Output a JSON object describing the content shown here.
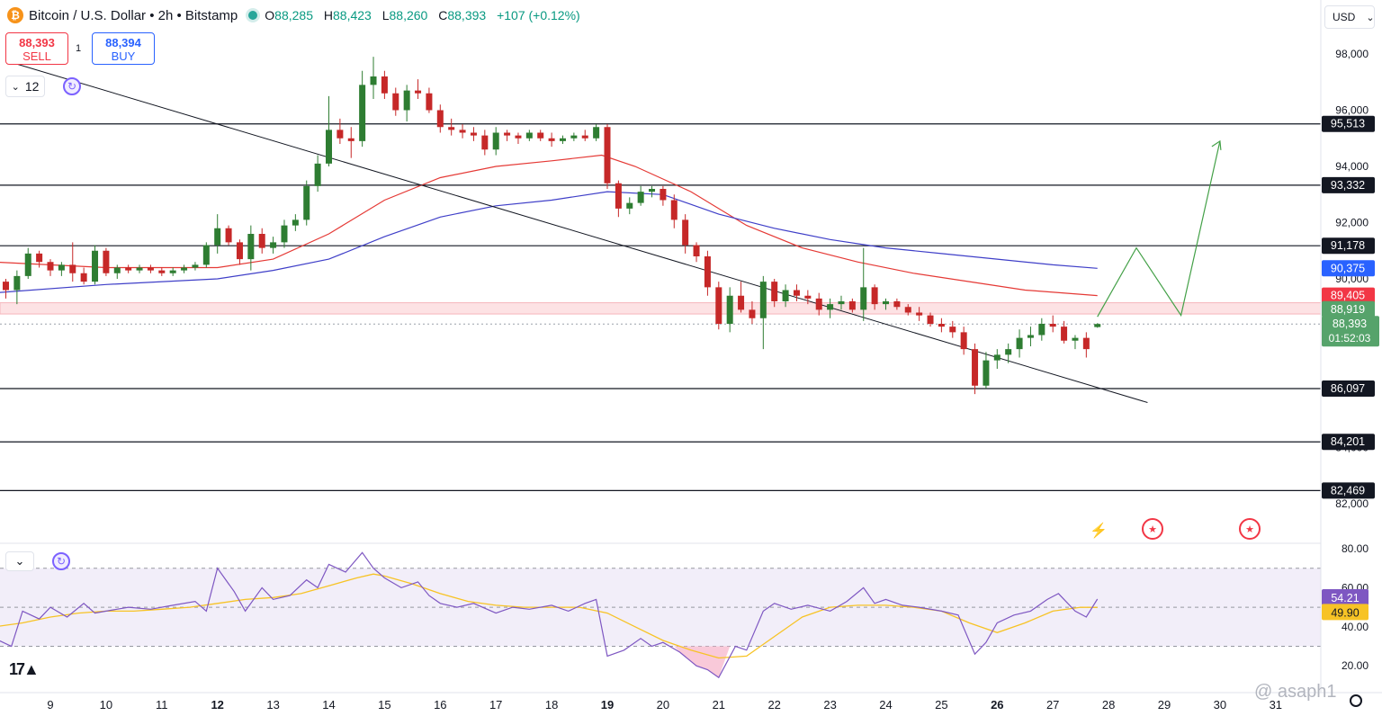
{
  "header": {
    "coin_icon": "bitcoin-icon",
    "coin_symbol": "₿",
    "title": "Bitcoin / U.S. Dollar • 2h • Bitstamp",
    "ohlc": {
      "o_label": "O",
      "o": "88,285",
      "h_label": "H",
      "h": "88,423",
      "l_label": "L",
      "l": "88,260",
      "c_label": "C",
      "c": "88,393",
      "change": "+107 (+0.12%)"
    }
  },
  "trade": {
    "sell_price": "88,393",
    "sell_label": "SELL",
    "buy_price": "88,394",
    "buy_label": "BUY",
    "spread": "1"
  },
  "indicators": {
    "count": "12",
    "rsi_chevron": "⌄"
  },
  "currency": {
    "selected": "USD",
    "chevron": "⌄"
  },
  "watermark": "@ asaph1",
  "chart_data": {
    "type": "candlestick",
    "x_ticks": [
      "9",
      "10",
      "11",
      "12",
      "13",
      "14",
      "15",
      "16",
      "17",
      "18",
      "19",
      "20",
      "21",
      "22",
      "23",
      "24",
      "25",
      "26",
      "27",
      "28",
      "29",
      "30",
      "31"
    ],
    "x_ticks_bold": [
      "12",
      "19",
      "26"
    ],
    "ylim": [
      80000,
      100000
    ],
    "y_ticks": [
      "98,000",
      "96,000",
      "94,000",
      "92,000",
      "90,000",
      "88,000",
      "86,000",
      "84,000",
      "82,000"
    ],
    "y_tick_values": [
      98000,
      96000,
      94000,
      92000,
      90000,
      88000,
      86000,
      84000,
      82000
    ],
    "horizontal_levels": [
      95513,
      93332,
      91178,
      86097,
      84201,
      82469
    ],
    "level_labels": [
      "95,513",
      "93,332",
      "91,178",
      "86,097",
      "84,201",
      "82,469"
    ],
    "zone": [
      88750,
      89150
    ],
    "price_tags": [
      {
        "label": "90,375",
        "value": 90375,
        "color": "#2962ff"
      },
      {
        "label": "89,405",
        "value": 89405,
        "color": "#f23645"
      },
      {
        "label": "88,919",
        "value": 88919,
        "color": "#56a36b"
      }
    ],
    "current_price": {
      "label": "88,393",
      "countdown": "01:52:03",
      "value": 88393,
      "color": "#56a36b"
    },
    "trendline": [
      {
        "x": 8.3,
        "y": 97700
      },
      {
        "x": 28.7,
        "y": 85600
      }
    ],
    "projection": [
      {
        "x": 27.8,
        "y": 88650
      },
      {
        "x": 28.5,
        "y": 91100
      },
      {
        "x": 29.3,
        "y": 88700
      },
      {
        "x": 30.0,
        "y": 94900
      }
    ],
    "candles": [
      [
        8.0,
        90900,
        91000,
        89600,
        89900
      ],
      [
        8.2,
        89900,
        90000,
        89300,
        89600
      ],
      [
        8.4,
        89600,
        90300,
        89100,
        90100
      ],
      [
        8.6,
        90100,
        91100,
        90000,
        90900
      ],
      [
        8.8,
        90900,
        91000,
        90400,
        90600
      ],
      [
        9.0,
        90600,
        90700,
        90100,
        90300
      ],
      [
        9.2,
        90300,
        90600,
        90100,
        90500
      ],
      [
        9.4,
        90500,
        91300,
        89900,
        90200
      ],
      [
        9.6,
        90200,
        90400,
        89800,
        89900
      ],
      [
        9.8,
        89900,
        91200,
        89800,
        91000
      ],
      [
        10.0,
        91000,
        91100,
        90100,
        90200
      ],
      [
        10.2,
        90200,
        90500,
        90000,
        90400
      ],
      [
        10.4,
        90400,
        90500,
        90200,
        90300
      ],
      [
        10.6,
        90300,
        90500,
        90200,
        90400
      ],
      [
        10.8,
        90400,
        90500,
        90200,
        90300
      ],
      [
        11.0,
        90300,
        90400,
        90100,
        90200
      ],
      [
        11.2,
        90200,
        90400,
        90100,
        90300
      ],
      [
        11.4,
        90300,
        90500,
        90200,
        90400
      ],
      [
        11.6,
        90400,
        90600,
        90300,
        90500
      ],
      [
        11.8,
        90500,
        91300,
        90400,
        91200
      ],
      [
        12.0,
        91200,
        92300,
        90900,
        91800
      ],
      [
        12.2,
        91800,
        91900,
        91200,
        91300
      ],
      [
        12.4,
        91300,
        91400,
        90500,
        90700
      ],
      [
        12.6,
        90700,
        91900,
        90300,
        91600
      ],
      [
        12.8,
        91600,
        91800,
        90900,
        91100
      ],
      [
        13.0,
        91100,
        91500,
        90900,
        91300
      ],
      [
        13.2,
        91300,
        92100,
        91100,
        91900
      ],
      [
        13.4,
        91900,
        92300,
        91700,
        92100
      ],
      [
        13.6,
        92100,
        93500,
        91900,
        93300
      ],
      [
        13.8,
        93300,
        94400,
        93100,
        94100
      ],
      [
        14.0,
        94100,
        96500,
        94000,
        95300
      ],
      [
        14.2,
        95300,
        95700,
        94800,
        95000
      ],
      [
        14.4,
        95000,
        95400,
        94300,
        94900
      ],
      [
        14.6,
        94900,
        97400,
        94700,
        96900
      ],
      [
        14.8,
        96900,
        97900,
        96400,
        97200
      ],
      [
        15.0,
        97200,
        97400,
        96400,
        96600
      ],
      [
        15.2,
        96600,
        96800,
        95800,
        96000
      ],
      [
        15.4,
        96000,
        96900,
        95600,
        96700
      ],
      [
        15.6,
        96700,
        97100,
        96400,
        96600
      ],
      [
        15.8,
        96600,
        96800,
        95900,
        96000
      ],
      [
        16.0,
        96000,
        96200,
        95200,
        95400
      ],
      [
        16.2,
        95400,
        95700,
        95100,
        95300
      ],
      [
        16.4,
        95300,
        95500,
        95000,
        95200
      ],
      [
        16.6,
        95200,
        95400,
        94900,
        95100
      ],
      [
        16.8,
        95100,
        95300,
        94400,
        94600
      ],
      [
        17.0,
        94600,
        95400,
        94400,
        95200
      ],
      [
        17.2,
        95200,
        95300,
        94900,
        95100
      ],
      [
        17.4,
        95100,
        95200,
        94800,
        95000
      ],
      [
        17.6,
        95000,
        95300,
        94900,
        95200
      ],
      [
        17.8,
        95200,
        95300,
        94900,
        95000
      ],
      [
        18.0,
        95000,
        95200,
        94700,
        94900
      ],
      [
        18.2,
        94900,
        95100,
        94800,
        95000
      ],
      [
        18.4,
        95000,
        95200,
        94900,
        95100
      ],
      [
        18.6,
        95100,
        95300,
        94900,
        95000
      ],
      [
        18.8,
        95000,
        95500,
        94900,
        95400
      ],
      [
        19.0,
        95400,
        95500,
        93200,
        93400
      ],
      [
        19.2,
        93400,
        93500,
        92200,
        92500
      ],
      [
        19.4,
        92500,
        92900,
        92300,
        92700
      ],
      [
        19.6,
        92700,
        93300,
        92600,
        93100
      ],
      [
        19.8,
        93100,
        93300,
        92900,
        93200
      ],
      [
        20.0,
        93200,
        93300,
        92600,
        92800
      ],
      [
        20.2,
        92800,
        93000,
        91800,
        92100
      ],
      [
        20.4,
        92100,
        92300,
        90900,
        91200
      ],
      [
        20.6,
        91200,
        91300,
        90600,
        90800
      ],
      [
        20.8,
        90800,
        91000,
        89400,
        89700
      ],
      [
        21.0,
        89700,
        89900,
        88200,
        88400
      ],
      [
        21.2,
        88400,
        89700,
        88100,
        89400
      ],
      [
        21.4,
        89400,
        89900,
        88800,
        88900
      ],
      [
        21.6,
        88900,
        89200,
        88400,
        88600
      ],
      [
        21.8,
        88600,
        90100,
        87500,
        89900
      ],
      [
        22.0,
        89900,
        90000,
        89000,
        89200
      ],
      [
        22.2,
        89200,
        89800,
        89000,
        89600
      ],
      [
        22.4,
        89600,
        89800,
        89200,
        89400
      ],
      [
        22.6,
        89400,
        89600,
        89100,
        89300
      ],
      [
        22.8,
        89300,
        89500,
        88700,
        88900
      ],
      [
        23.0,
        88900,
        89300,
        88600,
        89100
      ],
      [
        23.2,
        89100,
        89400,
        88900,
        89200
      ],
      [
        23.4,
        89200,
        89300,
        88800,
        88900
      ],
      [
        23.6,
        88900,
        91100,
        88500,
        89700
      ],
      [
        23.8,
        89700,
        89800,
        88900,
        89100
      ],
      [
        24.0,
        89100,
        89300,
        88900,
        89200
      ],
      [
        24.2,
        89200,
        89300,
        88900,
        89000
      ],
      [
        24.4,
        89000,
        89100,
        88700,
        88800
      ],
      [
        24.6,
        88800,
        89000,
        88500,
        88700
      ],
      [
        24.8,
        88700,
        88800,
        88300,
        88400
      ],
      [
        25.0,
        88400,
        88600,
        88100,
        88300
      ],
      [
        25.2,
        88300,
        88500,
        87900,
        88100
      ],
      [
        25.4,
        88100,
        88300,
        87300,
        87500
      ],
      [
        25.6,
        87500,
        87700,
        85900,
        86200
      ],
      [
        25.8,
        86200,
        87400,
        86100,
        87100
      ],
      [
        26.0,
        87100,
        87500,
        86800,
        87300
      ],
      [
        26.2,
        87300,
        87700,
        87000,
        87500
      ],
      [
        26.4,
        87500,
        88200,
        87200,
        87900
      ],
      [
        26.6,
        87900,
        88300,
        87600,
        88000
      ],
      [
        26.8,
        88000,
        88600,
        87800,
        88400
      ],
      [
        27.0,
        88400,
        88700,
        88100,
        88300
      ],
      [
        27.2,
        88300,
        88500,
        87700,
        87800
      ],
      [
        27.4,
        87800,
        88000,
        87500,
        87900
      ],
      [
        27.6,
        87900,
        88100,
        87200,
        87500
      ],
      [
        27.8,
        88285,
        88423,
        88260,
        88393
      ]
    ],
    "ma_red": [
      [
        8,
        90600
      ],
      [
        10,
        90400
      ],
      [
        12,
        90400
      ],
      [
        13,
        90700
      ],
      [
        14,
        91600
      ],
      [
        15,
        92800
      ],
      [
        16,
        93600
      ],
      [
        17,
        94000
      ],
      [
        18,
        94200
      ],
      [
        18.9,
        94400
      ],
      [
        19.5,
        94000
      ],
      [
        20.5,
        93100
      ],
      [
        21.5,
        91900
      ],
      [
        22.5,
        91100
      ],
      [
        23.5,
        90600
      ],
      [
        24.5,
        90200
      ],
      [
        25.5,
        89900
      ],
      [
        26.5,
        89600
      ],
      [
        27.8,
        89405
      ]
    ],
    "ma_blue": [
      [
        8,
        89500
      ],
      [
        10,
        89800
      ],
      [
        12,
        90000
      ],
      [
        13,
        90300
      ],
      [
        14,
        90700
      ],
      [
        15,
        91500
      ],
      [
        16,
        92200
      ],
      [
        17,
        92600
      ],
      [
        18,
        92800
      ],
      [
        19,
        93100
      ],
      [
        20,
        93000
      ],
      [
        21,
        92300
      ],
      [
        22,
        91800
      ],
      [
        23,
        91400
      ],
      [
        24,
        91100
      ],
      [
        25,
        90900
      ],
      [
        26,
        90700
      ],
      [
        27,
        90500
      ],
      [
        27.8,
        90375
      ]
    ],
    "rsi": {
      "y_ticks": [
        "80.00",
        "60.00",
        "40.00",
        "20.00"
      ],
      "y_tick_values": [
        80,
        60,
        40,
        20
      ],
      "ylim": [
        10,
        80
      ],
      "bands": [
        70,
        50,
        30
      ],
      "rsi_label": "54.21",
      "ma_label": "49.90",
      "rsi_value": 54.21,
      "ma_value": 49.9,
      "rsi_color": "#7e57c2",
      "ma_color": "#f7c325",
      "rsi_line": [
        [
          8.0,
          34
        ],
        [
          8.3,
          30
        ],
        [
          8.5,
          48
        ],
        [
          8.8,
          44
        ],
        [
          9.0,
          50
        ],
        [
          9.3,
          45
        ],
        [
          9.6,
          52
        ],
        [
          9.8,
          47
        ],
        [
          10.0,
          48
        ],
        [
          10.4,
          50
        ],
        [
          10.8,
          49
        ],
        [
          11.2,
          51
        ],
        [
          11.6,
          53
        ],
        [
          11.8,
          48
        ],
        [
          12.0,
          70
        ],
        [
          12.3,
          58
        ],
        [
          12.5,
          48
        ],
        [
          12.8,
          60
        ],
        [
          13.0,
          54
        ],
        [
          13.3,
          56
        ],
        [
          13.6,
          64
        ],
        [
          13.8,
          60
        ],
        [
          14.0,
          72
        ],
        [
          14.3,
          68
        ],
        [
          14.6,
          78
        ],
        [
          14.8,
          70
        ],
        [
          15.0,
          65
        ],
        [
          15.3,
          60
        ],
        [
          15.6,
          63
        ],
        [
          15.8,
          56
        ],
        [
          16.0,
          52
        ],
        [
          16.3,
          50
        ],
        [
          16.6,
          52
        ],
        [
          17.0,
          47
        ],
        [
          17.3,
          50
        ],
        [
          17.6,
          49
        ],
        [
          18.0,
          51
        ],
        [
          18.3,
          48
        ],
        [
          18.6,
          52
        ],
        [
          18.8,
          54
        ],
        [
          19.0,
          25
        ],
        [
          19.3,
          28
        ],
        [
          19.6,
          34
        ],
        [
          19.8,
          30
        ],
        [
          20.0,
          32
        ],
        [
          20.3,
          27
        ],
        [
          20.6,
          20
        ],
        [
          20.8,
          18
        ],
        [
          21.0,
          14
        ],
        [
          21.3,
          30
        ],
        [
          21.5,
          28
        ],
        [
          21.8,
          48
        ],
        [
          22.0,
          52
        ],
        [
          22.3,
          49
        ],
        [
          22.6,
          51
        ],
        [
          23.0,
          48
        ],
        [
          23.3,
          53
        ],
        [
          23.6,
          60
        ],
        [
          23.8,
          52
        ],
        [
          24.0,
          54
        ],
        [
          24.3,
          51
        ],
        [
          24.6,
          50
        ],
        [
          25.0,
          48
        ],
        [
          25.3,
          46
        ],
        [
          25.6,
          26
        ],
        [
          25.8,
          32
        ],
        [
          26.0,
          42
        ],
        [
          26.3,
          46
        ],
        [
          26.6,
          48
        ],
        [
          26.9,
          54
        ],
        [
          27.1,
          57
        ],
        [
          27.4,
          48
        ],
        [
          27.6,
          45
        ],
        [
          27.8,
          54.21
        ]
      ],
      "ma_line": [
        [
          8.0,
          40
        ],
        [
          8.5,
          42
        ],
        [
          9.0,
          45
        ],
        [
          9.5,
          47
        ],
        [
          10.0,
          48
        ],
        [
          10.5,
          48
        ],
        [
          11.0,
          49
        ],
        [
          11.5,
          50
        ],
        [
          12.0,
          52
        ],
        [
          12.5,
          54
        ],
        [
          13.0,
          55
        ],
        [
          13.5,
          57
        ],
        [
          14.0,
          61
        ],
        [
          14.5,
          65
        ],
        [
          14.8,
          67
        ],
        [
          15.0,
          66
        ],
        [
          15.5,
          62
        ],
        [
          16.0,
          57
        ],
        [
          16.5,
          53
        ],
        [
          17.0,
          51
        ],
        [
          17.5,
          50
        ],
        [
          18.0,
          50
        ],
        [
          18.5,
          50
        ],
        [
          19.0,
          47
        ],
        [
          19.5,
          40
        ],
        [
          20.0,
          33
        ],
        [
          20.5,
          28
        ],
        [
          21.0,
          24
        ],
        [
          21.5,
          25
        ],
        [
          22.0,
          35
        ],
        [
          22.5,
          45
        ],
        [
          23.0,
          50
        ],
        [
          23.5,
          51
        ],
        [
          24.0,
          51
        ],
        [
          24.5,
          50
        ],
        [
          25.0,
          48
        ],
        [
          25.5,
          42
        ],
        [
          26.0,
          37
        ],
        [
          26.5,
          42
        ],
        [
          27.0,
          48
        ],
        [
          27.5,
          50
        ],
        [
          27.8,
          49.9
        ]
      ]
    }
  }
}
